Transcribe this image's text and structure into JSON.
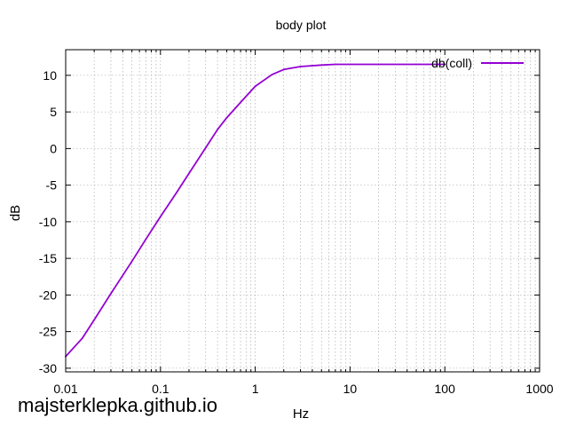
{
  "watermark": "majsterklepka.github.io",
  "chart_data": {
    "type": "line",
    "title": "body plot",
    "xlabel": "Hz",
    "ylabel": "dB",
    "xscale": "log",
    "xlim": [
      0.01,
      1000
    ],
    "ylim": [
      -30.5,
      13.5
    ],
    "grid": true,
    "legend_position": "top-right",
    "xticks": [
      0.01,
      0.1,
      1,
      10,
      100,
      1000
    ],
    "xtick_labels": [
      "0.01",
      "0.1",
      "1",
      "10",
      "100",
      "1000"
    ],
    "yticks": [
      10,
      5,
      0,
      -5,
      -10,
      -15,
      -20,
      -25,
      -30
    ],
    "ytick_labels": [
      "10",
      "5",
      "0",
      "-5",
      "-10",
      "-15",
      "-20",
      "-25",
      "-30"
    ],
    "series": [
      {
        "name": "db(coll)",
        "color": "#9400d3",
        "x": [
          0.01,
          0.015,
          0.02,
          0.03,
          0.05,
          0.07,
          0.1,
          0.15,
          0.2,
          0.3,
          0.4,
          0.5,
          0.7,
          1,
          1.5,
          2,
          3,
          5,
          7,
          10,
          20,
          50,
          100
        ],
        "y": [
          -28.4,
          -25.9,
          -23.4,
          -19.8,
          -15.4,
          -12.4,
          -9.3,
          -5.9,
          -3.4,
          0.1,
          2.6,
          4.2,
          6.3,
          8.5,
          10.1,
          10.8,
          11.2,
          11.4,
          11.5,
          11.5,
          11.5,
          11.5,
          11.5
        ]
      }
    ]
  }
}
